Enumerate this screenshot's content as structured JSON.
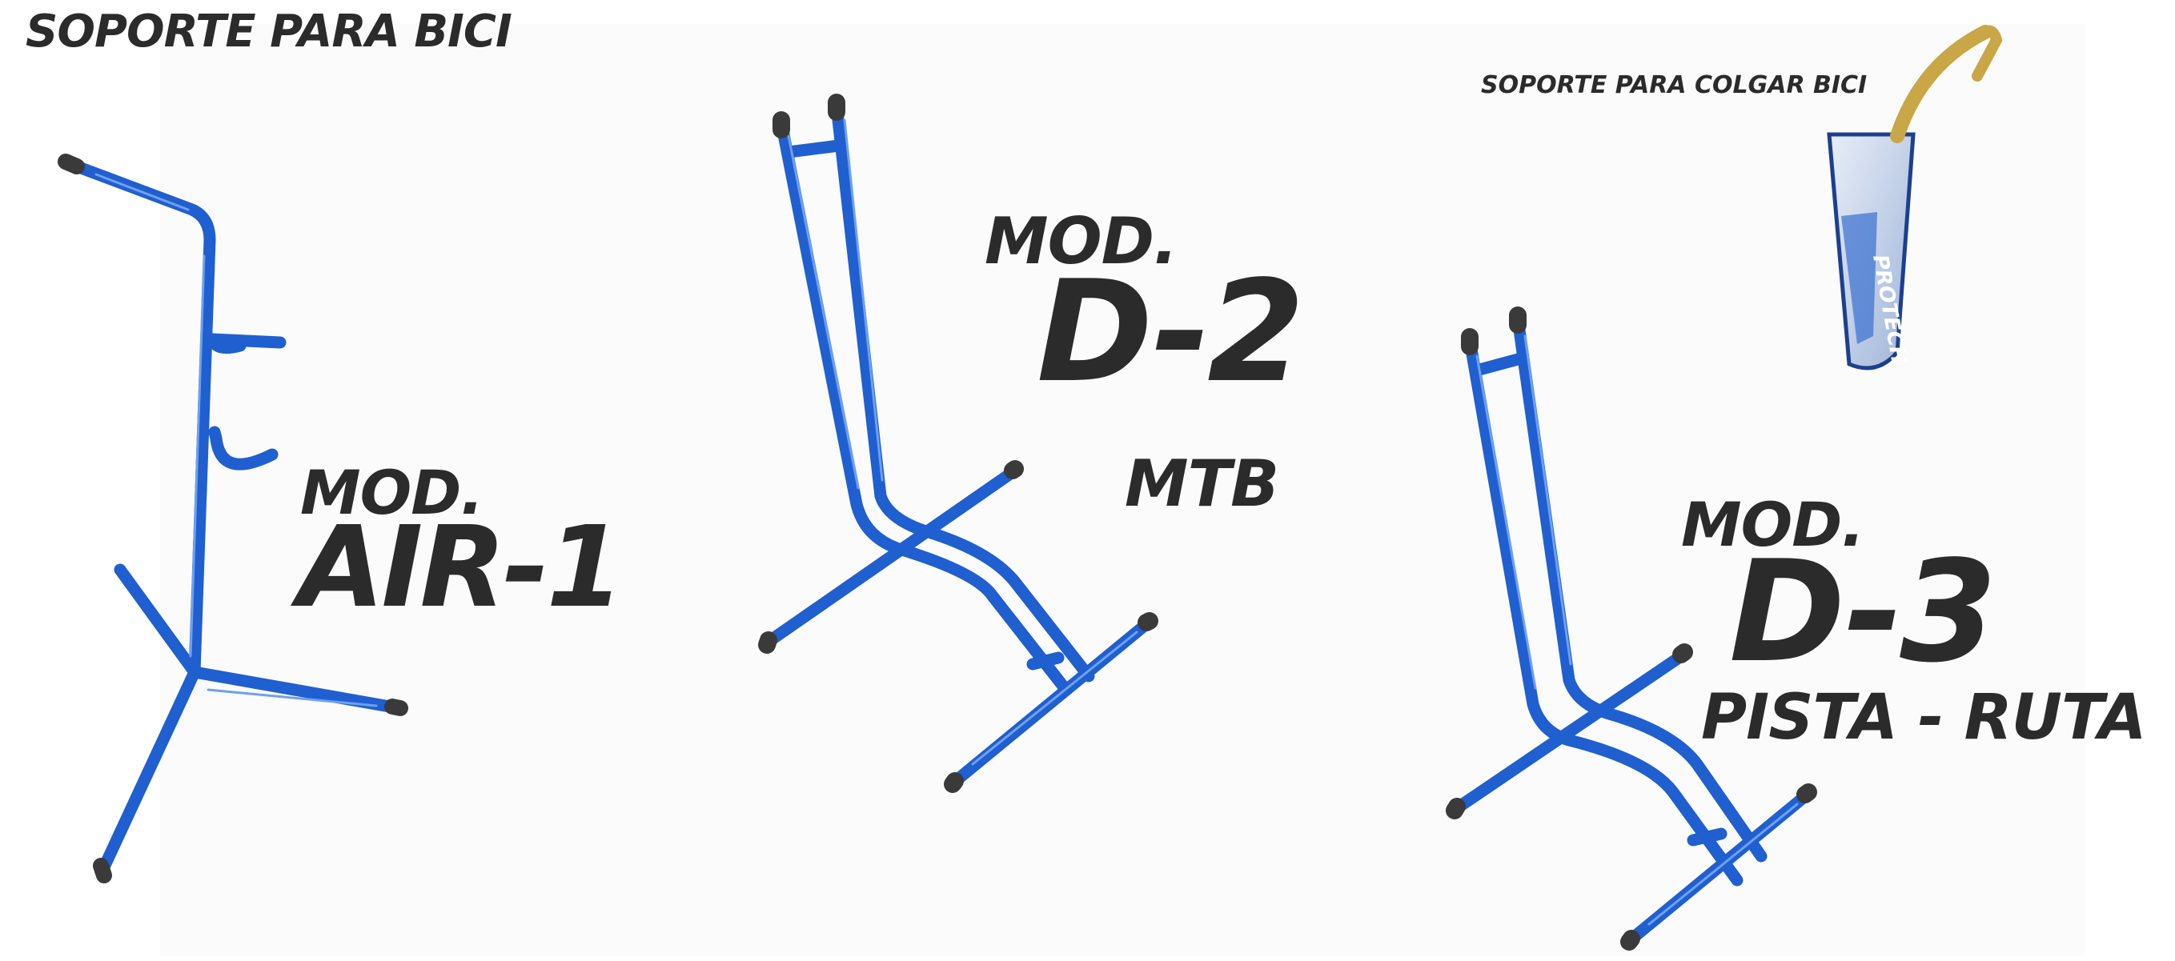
{
  "title": "SOPORTE PARA BICI",
  "hanging_stand": {
    "label": "SOPORTE PARA  COLGAR BICI",
    "brand_text": "PROTECH"
  },
  "models": [
    {
      "prefix": "MOD.",
      "name": "AIR-1",
      "subtitle": ""
    },
    {
      "prefix": "MOD.",
      "name": "D-2",
      "subtitle": "MTB"
    },
    {
      "prefix": "MOD.",
      "name": "D-3",
      "subtitle": "PISTA - RUTA"
    }
  ],
  "colors": {
    "text": "#2b2b2b",
    "tube_blue": "#1f5fd0",
    "tube_highlight": "#6fa0f0",
    "end_cap": "#3a3a3a",
    "grip_tape": "#c9a646"
  }
}
